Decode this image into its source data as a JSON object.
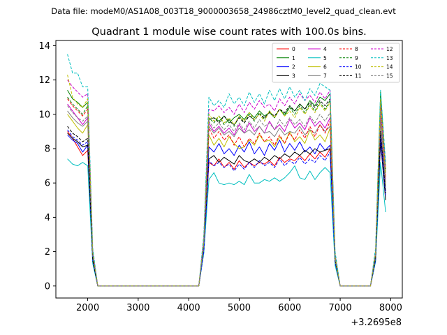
{
  "figure": {
    "suptitle": "Data file: modeM0/AS1A08_003T18_9000003658_24986cztM0_level2_quad_clean.evt"
  },
  "chart_data": {
    "type": "line",
    "title": "Quadrant 1 module wise count rates with 100.0s bins.",
    "xlabel": "",
    "ylabel": "",
    "x_offset_label": "+3.2695e8",
    "xlim": [
      1370,
      8230
    ],
    "ylim": [
      -0.7,
      14.3
    ],
    "xticks": [
      2000,
      3000,
      4000,
      5000,
      6000,
      7000,
      8000
    ],
    "yticks": [
      0,
      2,
      4,
      6,
      8,
      10,
      12,
      14
    ],
    "x": [
      1600,
      1700,
      1800,
      1900,
      2000,
      2100,
      2200,
      2300,
      2400,
      2500,
      2600,
      2700,
      2800,
      2900,
      3000,
      3100,
      3200,
      3300,
      3400,
      3500,
      3600,
      3700,
      3800,
      3900,
      4000,
      4100,
      4200,
      4300,
      4400,
      4500,
      4600,
      4700,
      4800,
      4900,
      5000,
      5100,
      5200,
      5300,
      5400,
      5500,
      5600,
      5700,
      5800,
      5900,
      6000,
      6100,
      6200,
      6300,
      6400,
      6500,
      6600,
      6700,
      6800,
      6900,
      7000,
      7100,
      7200,
      7300,
      7400,
      7500,
      7600,
      7700,
      7800,
      7900
    ],
    "legend": {
      "placement": "top-right",
      "columns": 4
    },
    "series": [
      {
        "name": "0",
        "color": "#ff0000",
        "dash": "solid",
        "values": [
          9.0,
          8.6,
          8.1,
          7.6,
          7.9,
          1.5,
          0,
          0,
          0,
          0,
          0,
          0,
          0,
          0,
          0,
          0,
          0,
          0,
          0,
          0,
          0,
          0,
          0,
          0,
          0,
          0,
          0,
          2.0,
          7.2,
          7.0,
          7.4,
          6.9,
          7.2,
          6.8,
          7.3,
          6.9,
          7.2,
          7.0,
          7.2,
          7.1,
          7.3,
          7.0,
          7.5,
          7.2,
          7.4,
          7.3,
          7.6,
          7.3,
          7.7,
          7.4,
          7.8,
          7.5,
          8.0,
          1.4,
          0,
          0,
          0,
          0,
          0,
          0,
          0,
          1.5,
          8.8,
          6.0
        ]
      },
      {
        "name": "1",
        "color": "#008000",
        "dash": "solid",
        "values": [
          11.4,
          10.9,
          10.7,
          10.4,
          10.7,
          1.9,
          0,
          0,
          0,
          0,
          0,
          0,
          0,
          0,
          0,
          0,
          0,
          0,
          0,
          0,
          0,
          0,
          0,
          0,
          0,
          0,
          0,
          2.6,
          9.7,
          9.8,
          9.6,
          9.9,
          9.5,
          9.8,
          10.0,
          9.7,
          10.1,
          9.8,
          10.2,
          9.9,
          10.1,
          9.8,
          10.3,
          10.0,
          10.4,
          10.2,
          10.6,
          10.3,
          10.8,
          10.5,
          11.0,
          10.8,
          11.2,
          1.8,
          0,
          0,
          0,
          0,
          0,
          0,
          0,
          1.9,
          11.3,
          6.8
        ]
      },
      {
        "name": "2",
        "color": "#0000ff",
        "dash": "solid",
        "values": [
          8.8,
          8.5,
          8.3,
          7.8,
          8.2,
          1.5,
          0,
          0,
          0,
          0,
          0,
          0,
          0,
          0,
          0,
          0,
          0,
          0,
          0,
          0,
          0,
          0,
          0,
          0,
          0,
          0,
          0,
          2.1,
          8.1,
          7.8,
          8.3,
          7.7,
          8.0,
          7.6,
          8.2,
          7.8,
          8.4,
          7.7,
          8.1,
          7.6,
          8.3,
          7.9,
          8.5,
          7.8,
          8.3,
          7.9,
          8.4,
          7.8,
          8.1,
          7.7,
          8.3,
          7.9,
          8.2,
          1.4,
          0,
          0,
          0,
          0,
          0,
          0,
          0,
          1.5,
          8.9,
          5.5
        ]
      },
      {
        "name": "3",
        "color": "#000000",
        "dash": "solid",
        "values": [
          8.9,
          8.6,
          8.4,
          8.1,
          8.2,
          1.4,
          0,
          0,
          0,
          0,
          0,
          0,
          0,
          0,
          0,
          0,
          0,
          0,
          0,
          0,
          0,
          0,
          0,
          0,
          0,
          0,
          0,
          2.0,
          7.4,
          7.6,
          7.2,
          7.5,
          7.3,
          7.1,
          7.6,
          7.3,
          7.2,
          7.4,
          7.2,
          7.5,
          7.3,
          7.6,
          7.4,
          7.7,
          7.5,
          7.8,
          7.6,
          7.9,
          7.7,
          8.0,
          7.8,
          7.9,
          8.0,
          1.4,
          0,
          0,
          0,
          0,
          0,
          0,
          0,
          1.5,
          8.4,
          5.0
        ]
      },
      {
        "name": "4",
        "color": "#cc00cc",
        "dash": "solid",
        "values": [
          10.6,
          10.2,
          9.8,
          9.4,
          9.8,
          1.7,
          0,
          0,
          0,
          0,
          0,
          0,
          0,
          0,
          0,
          0,
          0,
          0,
          0,
          0,
          0,
          0,
          0,
          0,
          0,
          0,
          0,
          2.5,
          9.5,
          9.0,
          9.3,
          8.9,
          9.2,
          8.8,
          9.4,
          8.9,
          9.5,
          9.0,
          9.3,
          8.9,
          9.6,
          9.1,
          9.4,
          9.0,
          9.7,
          9.2,
          9.5,
          9.1,
          9.8,
          9.3,
          9.6,
          9.2,
          9.8,
          1.6,
          0,
          0,
          0,
          0,
          0,
          0,
          0,
          1.8,
          10.5,
          6.2
        ]
      },
      {
        "name": "5",
        "color": "#00bfbf",
        "dash": "solid",
        "values": [
          7.4,
          7.1,
          7.0,
          7.2,
          7.0,
          1.3,
          0,
          0,
          0,
          0,
          0,
          0,
          0,
          0,
          0,
          0,
          0,
          0,
          0,
          0,
          0,
          0,
          0,
          0,
          0,
          0,
          0,
          1.9,
          6.2,
          6.6,
          6.0,
          5.9,
          6.0,
          5.9,
          6.1,
          5.9,
          6.5,
          6.0,
          6.0,
          6.2,
          6.1,
          6.3,
          6.1,
          6.3,
          6.6,
          7.0,
          6.3,
          6.2,
          6.7,
          6.2,
          6.6,
          6.9,
          6.6,
          1.2,
          0,
          0,
          0,
          0,
          0,
          0,
          0,
          1.4,
          7.2,
          4.3
        ]
      },
      {
        "name": "6",
        "color": "#bfbf00",
        "dash": "solid",
        "values": [
          10.0,
          9.6,
          9.2,
          8.9,
          9.4,
          1.7,
          0,
          0,
          0,
          0,
          0,
          0,
          0,
          0,
          0,
          0,
          0,
          0,
          0,
          0,
          0,
          0,
          0,
          0,
          0,
          0,
          0,
          2.3,
          8.8,
          8.2,
          8.6,
          8.1,
          8.7,
          8.3,
          8.0,
          8.1,
          8.5,
          8.2,
          8.8,
          8.4,
          8.5,
          8.1,
          8.7,
          8.3,
          9.0,
          8.4,
          8.7,
          8.3,
          9.1,
          8.5,
          8.8,
          8.4,
          9.2,
          1.5,
          0,
          0,
          0,
          0,
          0,
          0,
          0,
          1.7,
          9.6,
          5.9
        ]
      },
      {
        "name": "7",
        "color": "#808080",
        "dash": "solid",
        "values": [
          10.2,
          9.8,
          9.5,
          9.3,
          9.6,
          1.7,
          0,
          0,
          0,
          0,
          0,
          0,
          0,
          0,
          0,
          0,
          0,
          0,
          0,
          0,
          0,
          0,
          0,
          0,
          0,
          0,
          0,
          2.4,
          9.3,
          8.9,
          9.2,
          8.8,
          9.0,
          8.7,
          9.2,
          8.9,
          9.1,
          8.8,
          9.3,
          8.9,
          9.0,
          8.7,
          9.2,
          8.8,
          9.0,
          8.9,
          9.3,
          8.8,
          9.1,
          8.9,
          9.4,
          9.0,
          9.3,
          1.6,
          0,
          0,
          0,
          0,
          0,
          0,
          0,
          1.7,
          9.8,
          5.7
        ]
      },
      {
        "name": "8",
        "color": "#ff0000",
        "dash": "dashed",
        "values": [
          10.9,
          10.5,
          10.2,
          9.9,
          10.3,
          1.8,
          0,
          0,
          0,
          0,
          0,
          0,
          0,
          0,
          0,
          0,
          0,
          0,
          0,
          0,
          0,
          0,
          0,
          0,
          0,
          0,
          0,
          2.4,
          9.2,
          8.6,
          9.0,
          8.5,
          8.8,
          8.2,
          8.7,
          8.1,
          8.6,
          8.3,
          8.9,
          8.4,
          8.7,
          8.2,
          8.8,
          8.3,
          8.9,
          8.5,
          9.1,
          8.6,
          9.3,
          8.7,
          9.4,
          8.9,
          9.6,
          1.6,
          0,
          0,
          0,
          0,
          0,
          0,
          0,
          1.8,
          10.3,
          6.3
        ]
      },
      {
        "name": "9",
        "color": "#008000",
        "dash": "dashed",
        "values": [
          11.0,
          10.6,
          10.3,
          10.0,
          10.5,
          1.9,
          0,
          0,
          0,
          0,
          0,
          0,
          0,
          0,
          0,
          0,
          0,
          0,
          0,
          0,
          0,
          0,
          0,
          0,
          0,
          0,
          0,
          2.6,
          9.8,
          9.5,
          9.9,
          9.4,
          9.7,
          9.3,
          9.9,
          9.5,
          10.0,
          9.6,
          10.1,
          9.7,
          10.2,
          9.8,
          10.3,
          9.9,
          10.4,
          10.0,
          10.5,
          10.1,
          10.6,
          10.2,
          10.7,
          10.3,
          10.8,
          1.7,
          0,
          0,
          0,
          0,
          0,
          0,
          0,
          1.9,
          11.0,
          6.6
        ]
      },
      {
        "name": "10",
        "color": "#0000ff",
        "dash": "dashed",
        "values": [
          9.1,
          8.7,
          8.5,
          8.2,
          8.4,
          1.5,
          0,
          0,
          0,
          0,
          0,
          0,
          0,
          0,
          0,
          0,
          0,
          0,
          0,
          0,
          0,
          0,
          0,
          0,
          0,
          0,
          0,
          2.0,
          7.3,
          7.0,
          7.2,
          6.9,
          7.1,
          6.7,
          7.1,
          6.8,
          7.2,
          6.9,
          7.3,
          7.0,
          7.2,
          6.9,
          7.4,
          7.0,
          7.3,
          7.1,
          7.5,
          7.1,
          7.4,
          7.2,
          7.6,
          7.3,
          7.8,
          1.4,
          0,
          0,
          0,
          0,
          0,
          0,
          0,
          1.5,
          8.6,
          5.2
        ]
      },
      {
        "name": "11",
        "color": "#000000",
        "dash": "dashed",
        "values": [
          9.3,
          8.9,
          8.7,
          8.4,
          8.6,
          1.5,
          0,
          0,
          0,
          0,
          0,
          0,
          0,
          0,
          0,
          0,
          0,
          0,
          0,
          0,
          0,
          0,
          0,
          0,
          0,
          0,
          0,
          2.6,
          9.7,
          9.8,
          9.5,
          9.9,
          9.6,
          9.4,
          9.8,
          9.5,
          9.9,
          9.7,
          10.0,
          9.8,
          10.1,
          9.9,
          10.3,
          10.1,
          10.5,
          10.2,
          10.6,
          10.3,
          10.7,
          10.4,
          10.8,
          10.5,
          10.9,
          1.5,
          0,
          0,
          0,
          0,
          0,
          0,
          0,
          1.6,
          9.0,
          5.4
        ]
      },
      {
        "name": "12",
        "color": "#cc00cc",
        "dash": "dashed",
        "values": [
          12.0,
          11.6,
          11.3,
          11.0,
          11.2,
          2.0,
          0,
          0,
          0,
          0,
          0,
          0,
          0,
          0,
          0,
          0,
          0,
          0,
          0,
          0,
          0,
          0,
          0,
          0,
          0,
          0,
          0,
          2.8,
          10.3,
          10.2,
          10.5,
          10.1,
          10.4,
          10.0,
          10.6,
          10.1,
          10.7,
          10.3,
          10.8,
          10.4,
          10.6,
          10.2,
          10.9,
          10.5,
          11.0,
          10.6,
          11.2,
          10.8,
          11.1,
          10.7,
          11.3,
          10.9,
          11.4,
          1.8,
          0,
          0,
          0,
          0,
          0,
          0,
          0,
          2.0,
          10.8,
          6.9
        ]
      },
      {
        "name": "13",
        "color": "#00bfbf",
        "dash": "dashed",
        "values": [
          13.5,
          12.4,
          12.4,
          11.6,
          11.6,
          2.2,
          0,
          0,
          0,
          0,
          0,
          0,
          0,
          0,
          0,
          0,
          0,
          0,
          0,
          0,
          0,
          0,
          0,
          0,
          0,
          0,
          0,
          3.0,
          11.0,
          10.5,
          10.8,
          10.4,
          11.2,
          10.6,
          11.0,
          10.5,
          11.3,
          10.7,
          11.2,
          10.6,
          11.4,
          10.8,
          11.5,
          10.9,
          11.6,
          11.0,
          11.4,
          10.8,
          11.5,
          11.1,
          11.8,
          11.6,
          11.4,
          2.0,
          0,
          0,
          0,
          0,
          0,
          0,
          0,
          2.2,
          11.4,
          7.2
        ]
      },
      {
        "name": "14",
        "color": "#bfbf00",
        "dash": "dashed",
        "values": [
          12.3,
          11.0,
          10.6,
          10.4,
          10.9,
          1.9,
          0,
          0,
          0,
          0,
          0,
          0,
          0,
          0,
          0,
          0,
          0,
          0,
          0,
          0,
          0,
          0,
          0,
          0,
          0,
          0,
          0,
          2.6,
          10.0,
          9.6,
          9.9,
          9.5,
          9.8,
          9.4,
          9.9,
          9.6,
          10.1,
          9.7,
          10.0,
          9.6,
          10.2,
          9.8,
          10.3,
          9.9,
          10.2,
          9.8,
          10.4,
          10.0,
          10.5,
          10.1,
          10.6,
          10.2,
          10.7,
          1.7,
          0,
          0,
          0,
          0,
          0,
          0,
          0,
          1.9,
          10.9,
          6.5
        ]
      },
      {
        "name": "15",
        "color": "#808080",
        "dash": "dashed",
        "values": [
          10.5,
          10.1,
          9.8,
          9.6,
          9.9,
          1.8,
          0,
          0,
          0,
          0,
          0,
          0,
          0,
          0,
          0,
          0,
          0,
          0,
          0,
          0,
          0,
          0,
          0,
          0,
          0,
          0,
          0,
          2.5,
          9.6,
          9.2,
          9.5,
          9.1,
          9.4,
          9.0,
          9.5,
          9.1,
          9.6,
          9.2,
          9.7,
          9.3,
          9.5,
          9.1,
          9.7,
          9.3,
          9.8,
          9.4,
          9.7,
          9.3,
          9.9,
          9.5,
          10.0,
          9.6,
          10.1,
          1.6,
          0,
          0,
          0,
          0,
          0,
          0,
          0,
          1.8,
          10.2,
          6.0
        ]
      }
    ]
  }
}
